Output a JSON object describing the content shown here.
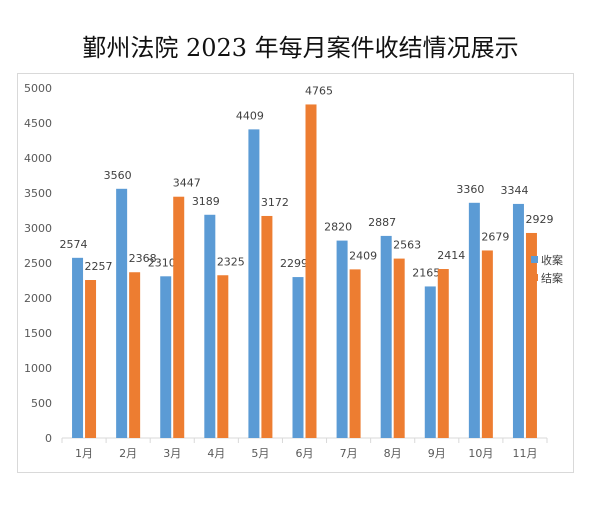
{
  "chart_data": {
    "type": "bar",
    "title": "鄞州法院 2023 年每月案件收结情况展示",
    "categories": [
      "1月",
      "2月",
      "3月",
      "4月",
      "5月",
      "6月",
      "7月",
      "8月",
      "9月",
      "10月",
      "11月"
    ],
    "series": [
      {
        "name": "收案",
        "color": "#5b9bd5",
        "values": [
          2574,
          3560,
          2310,
          3189,
          4409,
          2299,
          2820,
          2887,
          2165,
          3360,
          3344
        ]
      },
      {
        "name": "结案",
        "color": "#ed7d31",
        "values": [
          2257,
          2368,
          3447,
          2325,
          3172,
          4765,
          2409,
          2563,
          2414,
          2679,
          2929
        ]
      }
    ],
    "ylim": [
      0,
      5000
    ],
    "yticks": [
      0,
      500,
      1000,
      1500,
      2000,
      2500,
      3000,
      3500,
      4000,
      4500,
      5000
    ],
    "legend_position": "right",
    "grid": false
  }
}
